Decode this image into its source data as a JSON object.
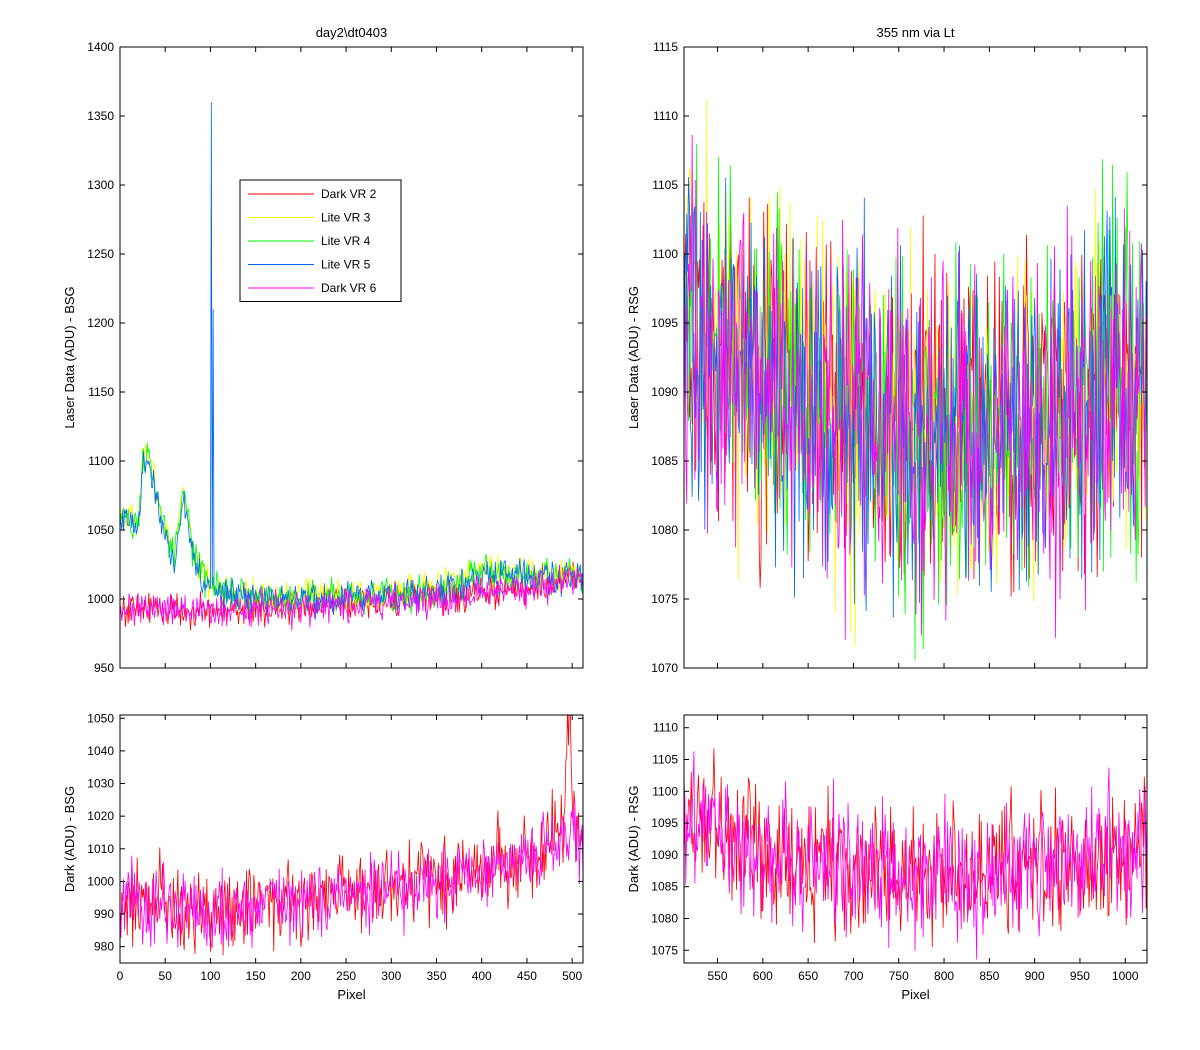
{
  "chart_data": [
    {
      "id": "top-left",
      "type": "line",
      "title": "day2\\dt0403",
      "xlabel": "",
      "ylabel": "Laser Data (ADU) - BSG",
      "xlim": [
        0,
        512
      ],
      "ylim": [
        950,
        1400
      ],
      "xticks": [],
      "yticks": [
        950,
        1000,
        1050,
        1100,
        1150,
        1200,
        1250,
        1300,
        1350,
        1400
      ],
      "legend_position": "upper-center",
      "series": [
        {
          "name": "Dark VR 2",
          "color": "#ff0000",
          "x": [
            0,
            25,
            50,
            75,
            100,
            125,
            150,
            175,
            200,
            225,
            250,
            275,
            300,
            325,
            350,
            375,
            400,
            425,
            450,
            475,
            500,
            512
          ],
          "y": [
            992,
            994,
            993,
            992,
            991,
            992,
            993,
            994,
            995,
            996,
            997,
            998,
            999,
            1000,
            1001,
            1002,
            1004,
            1006,
            1008,
            1011,
            1018,
            1012
          ]
        },
        {
          "name": "Lite VR 3",
          "color": "#ffff00",
          "x": [
            0,
            5,
            10,
            20,
            25,
            30,
            40,
            50,
            60,
            70,
            80,
            90,
            100,
            110,
            125,
            150,
            175,
            200,
            250,
            300,
            350,
            375,
            400,
            425,
            450,
            475,
            500,
            512
          ],
          "y": [
            1060,
            1065,
            1060,
            1055,
            1100,
            1105,
            1080,
            1050,
            1030,
            1080,
            1040,
            1020,
            1012,
            1008,
            1005,
            1003,
            1002,
            1002,
            1003,
            1004,
            1008,
            1015,
            1022,
            1020,
            1018,
            1017,
            1020,
            1015
          ]
        },
        {
          "name": "Lite VR 4",
          "color": "#00ff00",
          "x": [
            0,
            5,
            10,
            20,
            25,
            30,
            40,
            50,
            60,
            70,
            80,
            90,
            100,
            110,
            125,
            150,
            175,
            200,
            250,
            300,
            350,
            375,
            400,
            425,
            450,
            475,
            500,
            512
          ],
          "y": [
            1055,
            1062,
            1058,
            1052,
            1100,
            1108,
            1078,
            1048,
            1028,
            1078,
            1038,
            1018,
            1010,
            1006,
            1004,
            1002,
            1001,
            1001,
            1002,
            1003,
            1006,
            1013,
            1020,
            1018,
            1017,
            1016,
            1019,
            1013
          ]
        },
        {
          "name": "Lite VR 5",
          "color": "#0066ff",
          "x": [
            0,
            5,
            10,
            20,
            25,
            30,
            40,
            50,
            60,
            70,
            80,
            90,
            100,
            101,
            102,
            103,
            104,
            110,
            125,
            150,
            175,
            200,
            250,
            300,
            350,
            375,
            400,
            425,
            450,
            475,
            500,
            512
          ],
          "y": [
            1052,
            1060,
            1056,
            1050,
            1098,
            1100,
            1075,
            1045,
            1025,
            1075,
            1035,
            1015,
            1008,
            1360,
            1010,
            1210,
            1007,
            1005,
            1003,
            1001,
            1000,
            1000,
            1001,
            1002,
            1005,
            1011,
            1018,
            1017,
            1016,
            1015,
            1018,
            1012
          ]
        },
        {
          "name": "Dark VR 6",
          "color": "#ff00ff",
          "x": [
            0,
            25,
            50,
            75,
            100,
            125,
            150,
            175,
            200,
            225,
            250,
            275,
            300,
            325,
            350,
            375,
            400,
            425,
            450,
            475,
            500,
            512
          ],
          "y": [
            993,
            994,
            992,
            991,
            990,
            991,
            992,
            993,
            994,
            995,
            996,
            997,
            998,
            999,
            1000,
            1001,
            1003,
            1005,
            1007,
            1010,
            1016,
            1011
          ]
        }
      ]
    },
    {
      "id": "top-right",
      "type": "line",
      "title": "355 nm via Lt",
      "xlabel": "",
      "ylabel": "Laser Data (ADU) - RSG",
      "xlim": [
        513,
        1024
      ],
      "ylim": [
        1070,
        1115
      ],
      "xticks": [],
      "yticks": [
        1070,
        1075,
        1080,
        1085,
        1090,
        1095,
        1100,
        1105,
        1110,
        1115
      ],
      "series": [
        {
          "name": "Dark VR 2",
          "color": "#ff0000",
          "x": [
            513,
            550,
            600,
            650,
            700,
            750,
            800,
            850,
            900,
            950,
            1000,
            1024
          ],
          "y": [
            1096,
            1093,
            1091,
            1089,
            1088,
            1087,
            1087,
            1087,
            1088,
            1089,
            1091,
            1090
          ]
        },
        {
          "name": "Lite VR 3",
          "color": "#ffff00",
          "x": [
            513,
            550,
            600,
            650,
            700,
            750,
            800,
            850,
            900,
            950,
            1000,
            1024
          ],
          "y": [
            1097,
            1094,
            1091,
            1089,
            1088,
            1087,
            1087,
            1087,
            1088,
            1089,
            1091,
            1090
          ]
        },
        {
          "name": "Lite VR 4",
          "color": "#00ff00",
          "x": [
            513,
            550,
            600,
            650,
            700,
            750,
            800,
            850,
            900,
            950,
            1000,
            1024
          ],
          "y": [
            1096,
            1093,
            1091,
            1089,
            1088,
            1087,
            1086,
            1087,
            1088,
            1089,
            1091,
            1090
          ]
        },
        {
          "name": "Lite VR 5",
          "color": "#0066ff",
          "x": [
            513,
            550,
            600,
            650,
            700,
            750,
            800,
            850,
            900,
            950,
            1000,
            1024
          ],
          "y": [
            1096,
            1093,
            1091,
            1089,
            1088,
            1087,
            1087,
            1087,
            1088,
            1089,
            1091,
            1090
          ]
        },
        {
          "name": "Dark VR 6",
          "color": "#ff00ff",
          "x": [
            513,
            550,
            600,
            650,
            700,
            750,
            800,
            850,
            900,
            950,
            1000,
            1024
          ],
          "y": [
            1096,
            1093,
            1091,
            1089,
            1088,
            1087,
            1087,
            1087,
            1088,
            1089,
            1091,
            1090
          ]
        }
      ]
    },
    {
      "id": "bottom-left",
      "type": "line",
      "title": "",
      "xlabel": "Pixel",
      "ylabel": "Dark (ADU) - BSG",
      "xlim": [
        0,
        512
      ],
      "ylim": [
        975,
        1051
      ],
      "xticks": [
        0,
        50,
        100,
        150,
        200,
        250,
        300,
        350,
        400,
        450,
        500
      ],
      "yticks": [
        980,
        990,
        1000,
        1010,
        1020,
        1030,
        1040,
        1050
      ],
      "series": [
        {
          "name": "Dark VR 2",
          "color": "#ff0000",
          "x": [
            0,
            25,
            50,
            75,
            100,
            125,
            150,
            175,
            200,
            225,
            250,
            275,
            300,
            325,
            350,
            375,
            400,
            425,
            450,
            475,
            490,
            497,
            500,
            512
          ],
          "y": [
            992,
            994,
            993,
            992,
            991,
            992,
            993,
            994,
            995,
            996,
            997,
            998,
            999,
            1000,
            1001,
            1002,
            1004,
            1006,
            1008,
            1011,
            1020,
            1050,
            1018,
            1012
          ]
        },
        {
          "name": "Dark VR 6",
          "color": "#ff00ff",
          "x": [
            0,
            25,
            50,
            75,
            100,
            125,
            150,
            175,
            200,
            225,
            250,
            275,
            300,
            325,
            350,
            375,
            400,
            425,
            450,
            475,
            500,
            512
          ],
          "y": [
            993,
            994,
            992,
            991,
            990,
            991,
            992,
            993,
            994,
            995,
            996,
            997,
            998,
            999,
            1000,
            1001,
            1003,
            1005,
            1007,
            1010,
            1016,
            1011
          ]
        }
      ]
    },
    {
      "id": "bottom-right",
      "type": "line",
      "title": "",
      "xlabel": "Pixel",
      "ylabel": "Dark (ADU) - RSG",
      "xlim": [
        513,
        1024
      ],
      "ylim": [
        1073,
        1112
      ],
      "xticks": [
        550,
        600,
        650,
        700,
        750,
        800,
        850,
        900,
        950,
        1000
      ],
      "yticks": [
        1075,
        1080,
        1085,
        1090,
        1095,
        1100,
        1105,
        1110
      ],
      "series": [
        {
          "name": "Dark VR 2",
          "color": "#ff0000",
          "x": [
            513,
            550,
            600,
            650,
            700,
            750,
            800,
            850,
            900,
            950,
            1000,
            1024
          ],
          "y": [
            1096,
            1093,
            1091,
            1089,
            1088,
            1087,
            1087,
            1087,
            1088,
            1089,
            1091,
            1090
          ]
        },
        {
          "name": "Dark VR 6",
          "color": "#ff00ff",
          "x": [
            513,
            550,
            600,
            650,
            700,
            750,
            800,
            850,
            900,
            950,
            1000,
            1024
          ],
          "y": [
            1096,
            1093,
            1091,
            1089,
            1088,
            1087,
            1087,
            1087,
            1088,
            1089,
            1091,
            1090
          ]
        }
      ]
    }
  ]
}
